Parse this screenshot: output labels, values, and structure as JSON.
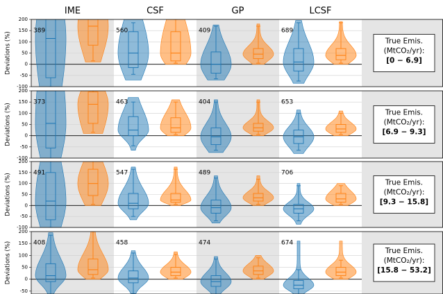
{
  "chart_data": {
    "type": "violin",
    "columns": [
      "IME",
      "CSF",
      "GP",
      "LCSF"
    ],
    "ylabel": "Deviations (%)",
    "colors": [
      "#1f77b4",
      "#ff7f0e"
    ],
    "grid": true,
    "rows": [
      {
        "label_lines": [
          "True Emis.",
          "(MtCO₂/yr):"
        ],
        "range": "[0 − 6.9]",
        "ylim": [
          -100,
          200
        ],
        "yticks": [
          -100,
          -50,
          0,
          50,
          100,
          150,
          200
        ],
        "counts": [
          389,
          560,
          409,
          689
        ],
        "violins": [
          [
            {
              "lo": -110,
              "whislo": -100,
              "q1": -60,
              "median": 115,
              "q3": 250,
              "whishi": 450,
              "hi": 500
            },
            {
              "lo": 10,
              "whislo": 15,
              "q1": 85,
              "median": 170,
              "q3": 260,
              "whishi": 450,
              "hi": 500
            }
          ],
          [
            {
              "lo": -70,
              "whislo": -45,
              "q1": -15,
              "median": 50,
              "q3": 145,
              "whishi": 185,
              "hi": 200
            },
            {
              "lo": 0,
              "whislo": 5,
              "q1": 15,
              "median": 50,
              "q3": 145,
              "whishi": 200,
              "hi": 210
            }
          ],
          [
            {
              "lo": -70,
              "whislo": -65,
              "q1": -40,
              "median": 0,
              "q3": 55,
              "whishi": 170,
              "hi": 175
            },
            {
              "lo": 0,
              "whislo": 5,
              "q1": 25,
              "median": 45,
              "q3": 70,
              "whishi": 170,
              "hi": 180
            }
          ],
          [
            {
              "lo": -85,
              "whislo": -75,
              "q1": -30,
              "median": 10,
              "q3": 70,
              "whishi": 185,
              "hi": 195
            },
            {
              "lo": 0,
              "whislo": 5,
              "q1": 20,
              "median": 40,
              "q3": 70,
              "whishi": 185,
              "hi": 190
            }
          ]
        ]
      },
      {
        "label_lines": [
          "True Emis.",
          "(MtCO₂/yr):"
        ],
        "range": "[6.9 − 9.3]",
        "ylim": [
          -100,
          200
        ],
        "yticks": [
          -100,
          -50,
          0,
          50,
          100,
          150,
          200
        ],
        "counts": [
          373,
          463,
          404,
          653
        ],
        "violins": [
          [
            {
              "lo": -120,
              "whislo": -110,
              "q1": -55,
              "median": 55,
              "q3": 260,
              "whishi": 450,
              "hi": 500
            },
            {
              "lo": 10,
              "whislo": 15,
              "q1": 55,
              "median": 140,
              "q3": 195,
              "whishi": 400,
              "hi": 450
            }
          ],
          [
            {
              "lo": -65,
              "whislo": -45,
              "q1": 0,
              "median": 25,
              "q3": 85,
              "whishi": 150,
              "hi": 170
            },
            {
              "lo": 0,
              "whislo": 5,
              "q1": 15,
              "median": 35,
              "q3": 80,
              "whishi": 150,
              "hi": 160
            }
          ],
          [
            {
              "lo": -75,
              "whislo": -65,
              "q1": -40,
              "median": -5,
              "q3": 35,
              "whishi": 150,
              "hi": 160
            },
            {
              "lo": 0,
              "whislo": 5,
              "q1": 20,
              "median": 35,
              "q3": 55,
              "whishi": 150,
              "hi": 160
            }
          ],
          [
            {
              "lo": -80,
              "whislo": -65,
              "q1": -35,
              "median": -5,
              "q3": 25,
              "whishi": 100,
              "hi": 115
            },
            {
              "lo": 0,
              "whislo": 5,
              "q1": 15,
              "median": 30,
              "q3": 50,
              "whishi": 100,
              "hi": 110
            }
          ]
        ]
      },
      {
        "label_lines": [
          "True Emis.",
          "(MtCO₂/yr):"
        ],
        "range": "[9.3 − 15.8]",
        "ylim": [
          -100,
          200
        ],
        "yticks": [
          -100,
          -50,
          0,
          50,
          100,
          150,
          200
        ],
        "counts": [
          491,
          547,
          489,
          706
        ],
        "violins": [
          [
            {
              "lo": -110,
              "whislo": -100,
              "q1": -65,
              "median": 20,
              "q3": 150,
              "whishi": 300,
              "hi": 350
            },
            {
              "lo": 0,
              "whislo": 5,
              "q1": 45,
              "median": 100,
              "q3": 165,
              "whishi": 300,
              "hi": 320
            }
          ],
          [
            {
              "lo": -65,
              "whislo": -50,
              "q1": -15,
              "median": 10,
              "q3": 55,
              "whishi": 165,
              "hi": 175
            },
            {
              "lo": 0,
              "whislo": 5,
              "q1": 15,
              "median": 25,
              "q3": 55,
              "whishi": 165,
              "hi": 175
            }
          ],
          [
            {
              "lo": -80,
              "whislo": -70,
              "q1": -35,
              "median": -10,
              "q3": 25,
              "whishi": 125,
              "hi": 135
            },
            {
              "lo": 0,
              "whislo": 5,
              "q1": 20,
              "median": 35,
              "q3": 55,
              "whishi": 120,
              "hi": 135
            }
          ],
          [
            {
              "lo": -85,
              "whislo": -70,
              "q1": -35,
              "median": -15,
              "q3": 5,
              "whishi": 90,
              "hi": 100
            },
            {
              "lo": 0,
              "whislo": 5,
              "q1": 15,
              "median": 30,
              "q3": 55,
              "whishi": 90,
              "hi": 100
            }
          ]
        ]
      },
      {
        "label_lines": [
          "True Emis.",
          "(MtCO₂/yr):"
        ],
        "range": "[15.8 − 53.2]",
        "ylim": [
          -62,
          200
        ],
        "yticks": [
          -50,
          0,
          50,
          100,
          150,
          200
        ],
        "counts": [
          408,
          458,
          474,
          674
        ],
        "violins": [
          [
            {
              "lo": -85,
              "whislo": -75,
              "q1": -10,
              "median": 15,
              "q3": 65,
              "whishi": 185,
              "hi": 195
            },
            {
              "lo": 0,
              "whislo": 5,
              "q1": 20,
              "median": 40,
              "q3": 85,
              "whishi": 200,
              "hi": 220
            }
          ],
          [
            {
              "lo": -70,
              "whislo": -60,
              "q1": -15,
              "median": 5,
              "q3": 35,
              "whishi": 110,
              "hi": 120
            },
            {
              "lo": 0,
              "whislo": 5,
              "q1": 15,
              "median": 30,
              "q3": 50,
              "whishi": 105,
              "hi": 115
            }
          ],
          [
            {
              "lo": -80,
              "whislo": -70,
              "q1": -30,
              "median": -10,
              "q3": 15,
              "whishi": 85,
              "hi": 95
            },
            {
              "lo": 0,
              "whislo": 5,
              "q1": 20,
              "median": 35,
              "q3": 55,
              "whishi": 90,
              "hi": 100
            }
          ],
          [
            {
              "lo": -80,
              "whislo": -70,
              "q1": -40,
              "median": -25,
              "q3": -5,
              "whishi": 40,
              "hi": 160
            },
            {
              "lo": 0,
              "whislo": 5,
              "q1": 15,
              "median": 30,
              "q3": 50,
              "whishi": 80,
              "hi": 160
            }
          ]
        ]
      }
    ]
  }
}
